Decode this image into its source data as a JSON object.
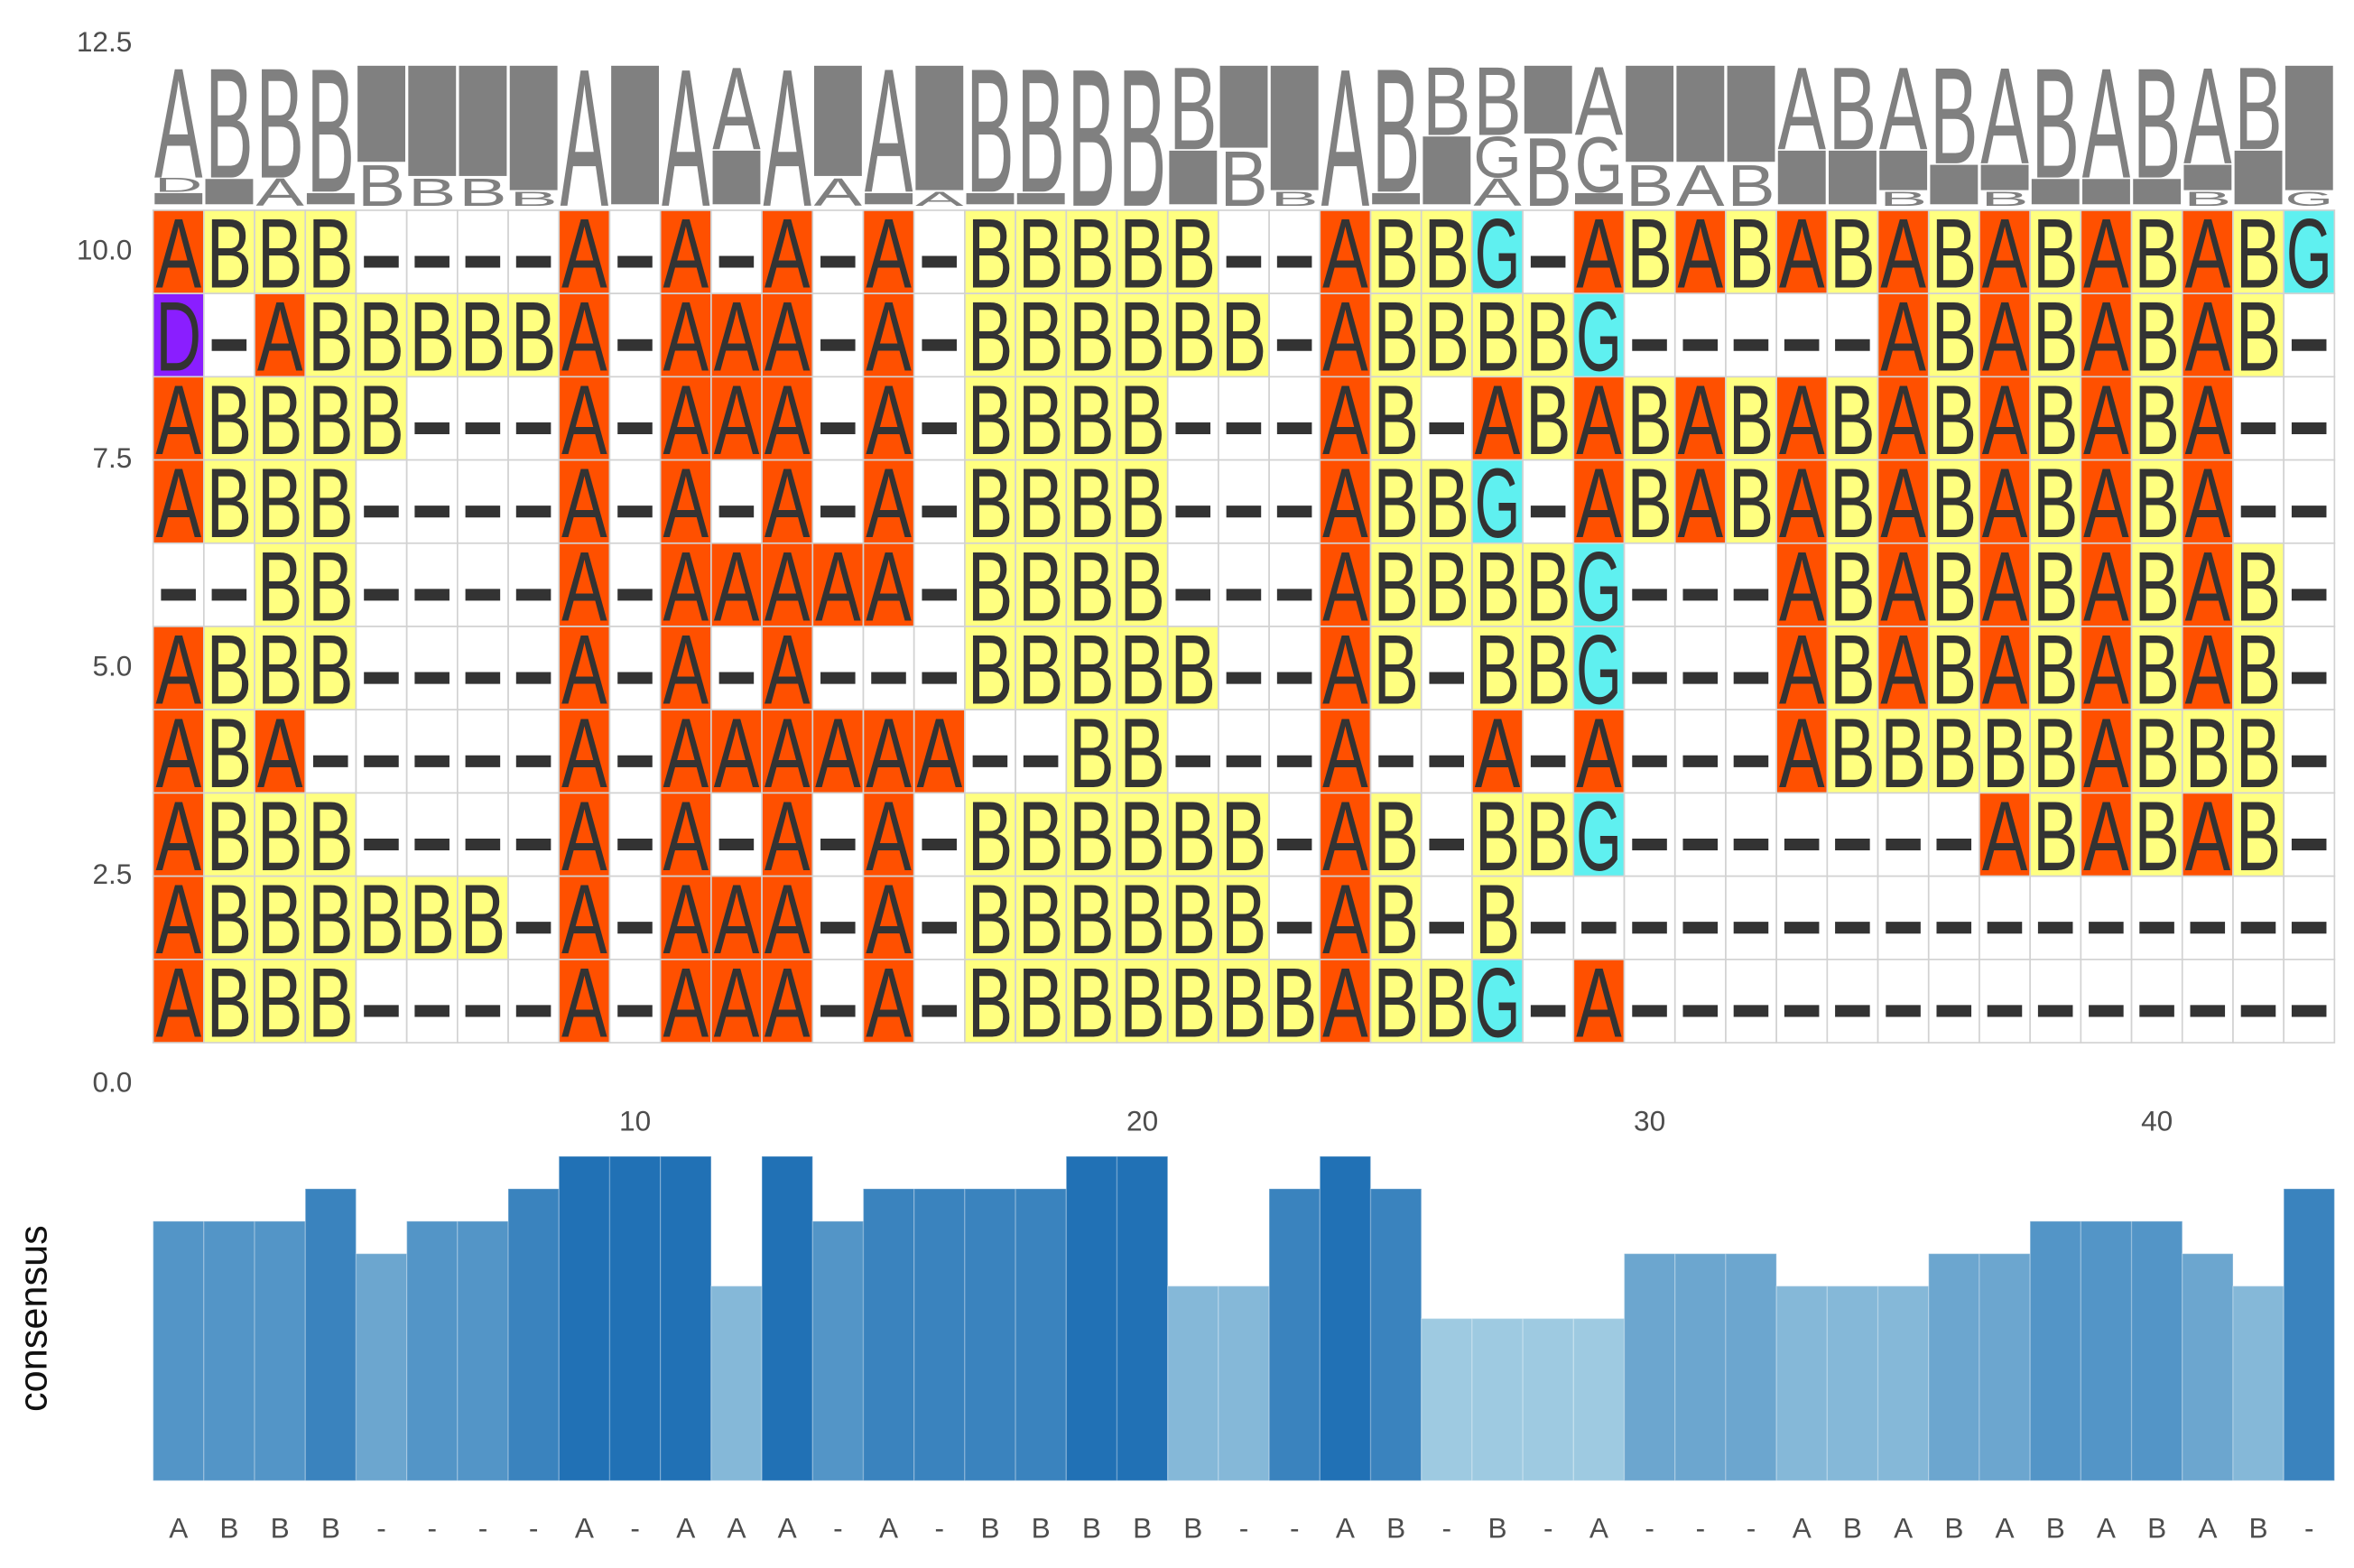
{
  "chart_data": {
    "type": "alignment",
    "sequences": [
      [
        "A",
        "B",
        "B",
        "B",
        "-",
        "-",
        "-",
        "-",
        "A",
        "-",
        "A",
        "-",
        "A",
        "-",
        "A",
        "-",
        "B",
        "B",
        "B",
        "B",
        "B",
        "-",
        "-",
        "A",
        "B",
        "B",
        "G",
        "-",
        "A",
        "B",
        "A",
        "B",
        "A",
        "B",
        "A",
        "B",
        "A",
        "B",
        "A",
        "B",
        "A",
        "B",
        "G"
      ],
      [
        "D",
        "-",
        "A",
        "B",
        "B",
        "B",
        "B",
        "B",
        "A",
        "-",
        "A",
        "A",
        "A",
        "-",
        "A",
        "-",
        "B",
        "B",
        "B",
        "B",
        "B",
        "B",
        "-",
        "A",
        "B",
        "B",
        "B",
        "B",
        "G",
        "-",
        "-",
        "-",
        "-",
        "-",
        "A",
        "B",
        "A",
        "B",
        "A",
        "B",
        "A",
        "B",
        "-"
      ],
      [
        "A",
        "B",
        "B",
        "B",
        "B",
        "-",
        "-",
        "-",
        "A",
        "-",
        "A",
        "A",
        "A",
        "-",
        "A",
        "-",
        "B",
        "B",
        "B",
        "B",
        "-",
        "-",
        "-",
        "A",
        "B",
        "-",
        "A",
        "B",
        "A",
        "B",
        "A",
        "B",
        "A",
        "B",
        "A",
        "B",
        "A",
        "B",
        "A",
        "B",
        "A",
        "-",
        "-"
      ],
      [
        "A",
        "B",
        "B",
        "B",
        "-",
        "-",
        "-",
        "-",
        "A",
        "-",
        "A",
        "-",
        "A",
        "-",
        "A",
        "-",
        "B",
        "B",
        "B",
        "B",
        "-",
        "-",
        "-",
        "A",
        "B",
        "B",
        "G",
        "-",
        "A",
        "B",
        "A",
        "B",
        "A",
        "B",
        "A",
        "B",
        "A",
        "B",
        "A",
        "B",
        "A",
        "-",
        "-"
      ],
      [
        "-",
        "-",
        "B",
        "B",
        "-",
        "-",
        "-",
        "-",
        "A",
        "-",
        "A",
        "A",
        "A",
        "A",
        "A",
        "-",
        "B",
        "B",
        "B",
        "B",
        "-",
        "-",
        "-",
        "A",
        "B",
        "B",
        "B",
        "B",
        "G",
        "-",
        "-",
        "-",
        "A",
        "B",
        "A",
        "B",
        "A",
        "B",
        "A",
        "B",
        "A",
        "B",
        "-"
      ],
      [
        "A",
        "B",
        "B",
        "B",
        "-",
        "-",
        "-",
        "-",
        "A",
        "-",
        "A",
        "-",
        "A",
        "-",
        "-",
        "-",
        "B",
        "B",
        "B",
        "B",
        "B",
        "-",
        "-",
        "A",
        "B",
        "-",
        "B",
        "B",
        "G",
        "-",
        "-",
        "-",
        "A",
        "B",
        "A",
        "B",
        "A",
        "B",
        "A",
        "B",
        "A",
        "B",
        "-"
      ],
      [
        "A",
        "B",
        "A",
        "-",
        "-",
        "-",
        "-",
        "-",
        "A",
        "-",
        "A",
        "A",
        "A",
        "A",
        "A",
        "A",
        "-",
        "-",
        "B",
        "B",
        "-",
        "-",
        "-",
        "A",
        "-",
        "-",
        "A",
        "-",
        "A",
        "-",
        "-",
        "-",
        "A",
        "B",
        "B",
        "B",
        "B",
        "B",
        "A",
        "B",
        "B",
        "B",
        "-"
      ],
      [
        "A",
        "B",
        "B",
        "B",
        "-",
        "-",
        "-",
        "-",
        "A",
        "-",
        "A",
        "-",
        "A",
        "-",
        "A",
        "-",
        "B",
        "B",
        "B",
        "B",
        "B",
        "B",
        "-",
        "A",
        "B",
        "-",
        "B",
        "B",
        "G",
        "-",
        "-",
        "-",
        "-",
        "-",
        "-",
        "-",
        "A",
        "B",
        "A",
        "B",
        "A",
        "B",
        "-"
      ],
      [
        "A",
        "B",
        "B",
        "B",
        "B",
        "B",
        "B",
        "-",
        "A",
        "-",
        "A",
        "A",
        "A",
        "-",
        "A",
        "-",
        "B",
        "B",
        "B",
        "B",
        "B",
        "B",
        "-",
        "A",
        "B",
        "-",
        "B",
        "-",
        "-",
        "-",
        "-",
        "-",
        "-",
        "-",
        "-",
        "-",
        "-",
        "-",
        "-",
        "-",
        "-",
        "-",
        "-"
      ],
      [
        "A",
        "B",
        "B",
        "B",
        "-",
        "-",
        "-",
        "-",
        "A",
        "-",
        "A",
        "A",
        "A",
        "-",
        "A",
        "-",
        "B",
        "B",
        "B",
        "B",
        "B",
        "B",
        "B",
        "A",
        "B",
        "B",
        "G",
        "-",
        "A",
        "-",
        "-",
        "-",
        "-",
        "-",
        "-",
        "-",
        "-",
        "-",
        "-",
        "-",
        "-",
        "-",
        "-"
      ]
    ],
    "consensus": [
      "A",
      "B",
      "B",
      "B",
      "-",
      "-",
      "-",
      "-",
      "A",
      "-",
      "A",
      "A",
      "A",
      "-",
      "A",
      "-",
      "B",
      "B",
      "B",
      "B",
      "B",
      "-",
      "-",
      "A",
      "B",
      "-",
      "B",
      "-",
      "A",
      "-",
      "-",
      "-",
      "A",
      "B",
      "A",
      "B",
      "A",
      "B",
      "A",
      "B",
      "A",
      "B",
      "-"
    ],
    "conservation": [
      8,
      8,
      8,
      9,
      7,
      8,
      8,
      9,
      10,
      10,
      10,
      6,
      10,
      8,
      9,
      9,
      9,
      9,
      10,
      10,
      6,
      6,
      9,
      10,
      9,
      5,
      5,
      5,
      5,
      7,
      7,
      7,
      6,
      6,
      6,
      7,
      7,
      8,
      8,
      8,
      7,
      6,
      9
    ],
    "ylim": [
      0,
      12.5
    ],
    "yticks": [
      {
        "value": 0,
        "label": "0.0"
      },
      2.5,
      {
        "value": 5,
        "label": "5.0"
      },
      7.5,
      {
        "value": 10,
        "label": "10.0"
      },
      12.5
    ],
    "xlim": [
      0.5,
      43.5
    ],
    "xticks": [
      10,
      20,
      30,
      40
    ],
    "ylabel": "consensus",
    "residue_colors": {
      "A": "#ff5000",
      "B": "#ffff80",
      "G": "#5ff0f0",
      "D": "#8a1eff"
    },
    "logo_color": "#808080",
    "conservation_colors": [
      "#9ecae1",
      "#2171b5"
    ]
  }
}
